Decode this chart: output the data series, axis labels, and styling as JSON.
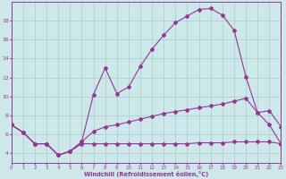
{
  "xlabel": "Windchill (Refroidissement éolien,°C)",
  "background_color": "#cce8e8",
  "grid_color": "#aacccc",
  "line_color": "#993399",
  "curve1_x": [
    0,
    1,
    2,
    3,
    4,
    5,
    6,
    7,
    8,
    9,
    10,
    11,
    12,
    13,
    14,
    15,
    16,
    17,
    18,
    19,
    20,
    21,
    22,
    23
  ],
  "curve1_y": [
    7.0,
    6.2,
    5.0,
    5.0,
    3.8,
    4.2,
    5.2,
    10.2,
    13.0,
    10.3,
    11.0,
    13.2,
    15.0,
    16.5,
    17.8,
    18.5,
    19.2,
    19.3,
    18.6,
    17.0,
    12.1,
    8.3,
    8.5,
    6.8
  ],
  "curve2_x": [
    0,
    1,
    2,
    3,
    4,
    5,
    6,
    7,
    8,
    9,
    10,
    11,
    12,
    13,
    14,
    15,
    16,
    17,
    18,
    19,
    20,
    21,
    22,
    23
  ],
  "curve2_y": [
    7.0,
    6.2,
    5.0,
    5.0,
    3.8,
    4.2,
    5.2,
    6.3,
    6.8,
    7.0,
    7.3,
    7.6,
    7.9,
    8.2,
    8.4,
    8.6,
    8.8,
    9.0,
    9.2,
    9.5,
    9.8,
    8.3,
    7.0,
    5.0
  ],
  "curve3_x": [
    0,
    1,
    2,
    3,
    4,
    5,
    6,
    7,
    8,
    9,
    10,
    11,
    12,
    13,
    14,
    15,
    16,
    17,
    18,
    19,
    20,
    21,
    22,
    23
  ],
  "curve3_y": [
    7.0,
    6.2,
    5.0,
    5.0,
    3.8,
    4.2,
    5.0,
    5.0,
    5.0,
    5.0,
    5.0,
    5.0,
    5.0,
    5.0,
    5.0,
    5.0,
    5.1,
    5.1,
    5.1,
    5.2,
    5.2,
    5.2,
    5.2,
    5.0
  ],
  "xlim": [
    0,
    23
  ],
  "ylim": [
    3.0,
    20.0
  ],
  "yticks": [
    4,
    6,
    8,
    10,
    12,
    14,
    16,
    18
  ],
  "xticks": [
    0,
    1,
    2,
    3,
    4,
    5,
    6,
    7,
    8,
    9,
    10,
    11,
    12,
    13,
    14,
    15,
    16,
    17,
    18,
    19,
    20,
    21,
    22,
    23
  ]
}
